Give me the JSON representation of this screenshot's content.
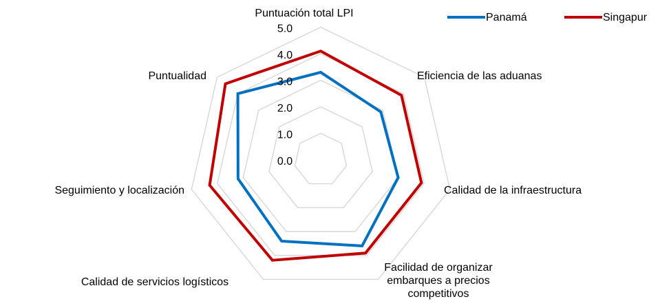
{
  "chart_data": {
    "type": "radar",
    "categories": [
      "Puntuación total LPI",
      "Eficiencia de las aduanas",
      "Calidad de la infraestructura",
      "Facilidad de organizar embarques a precios competitivos",
      "Calidad de servicios logísticos",
      "Seguimiento y localización",
      "Puntualidad"
    ],
    "series": [
      {
        "name": "Panamá",
        "color": "#0070C0",
        "values": [
          3.3,
          2.9,
          3.0,
          3.6,
          3.4,
          3.2,
          4.0
        ]
      },
      {
        "name": "Singapur",
        "color": "#C00000",
        "values": [
          4.1,
          3.9,
          3.9,
          3.9,
          4.2,
          4.3,
          4.6
        ]
      }
    ],
    "ylim": [
      0,
      5
    ],
    "yticks": [
      {
        "value": 0,
        "label": "0.0"
      },
      {
        "value": 1,
        "label": "1.0"
      },
      {
        "value": 2,
        "label": "2.0"
      },
      {
        "value": 3,
        "label": "3.0"
      },
      {
        "value": 4,
        "label": "4.0"
      },
      {
        "value": 5,
        "label": "5.0"
      }
    ],
    "grid": true,
    "legend": "top-right"
  }
}
